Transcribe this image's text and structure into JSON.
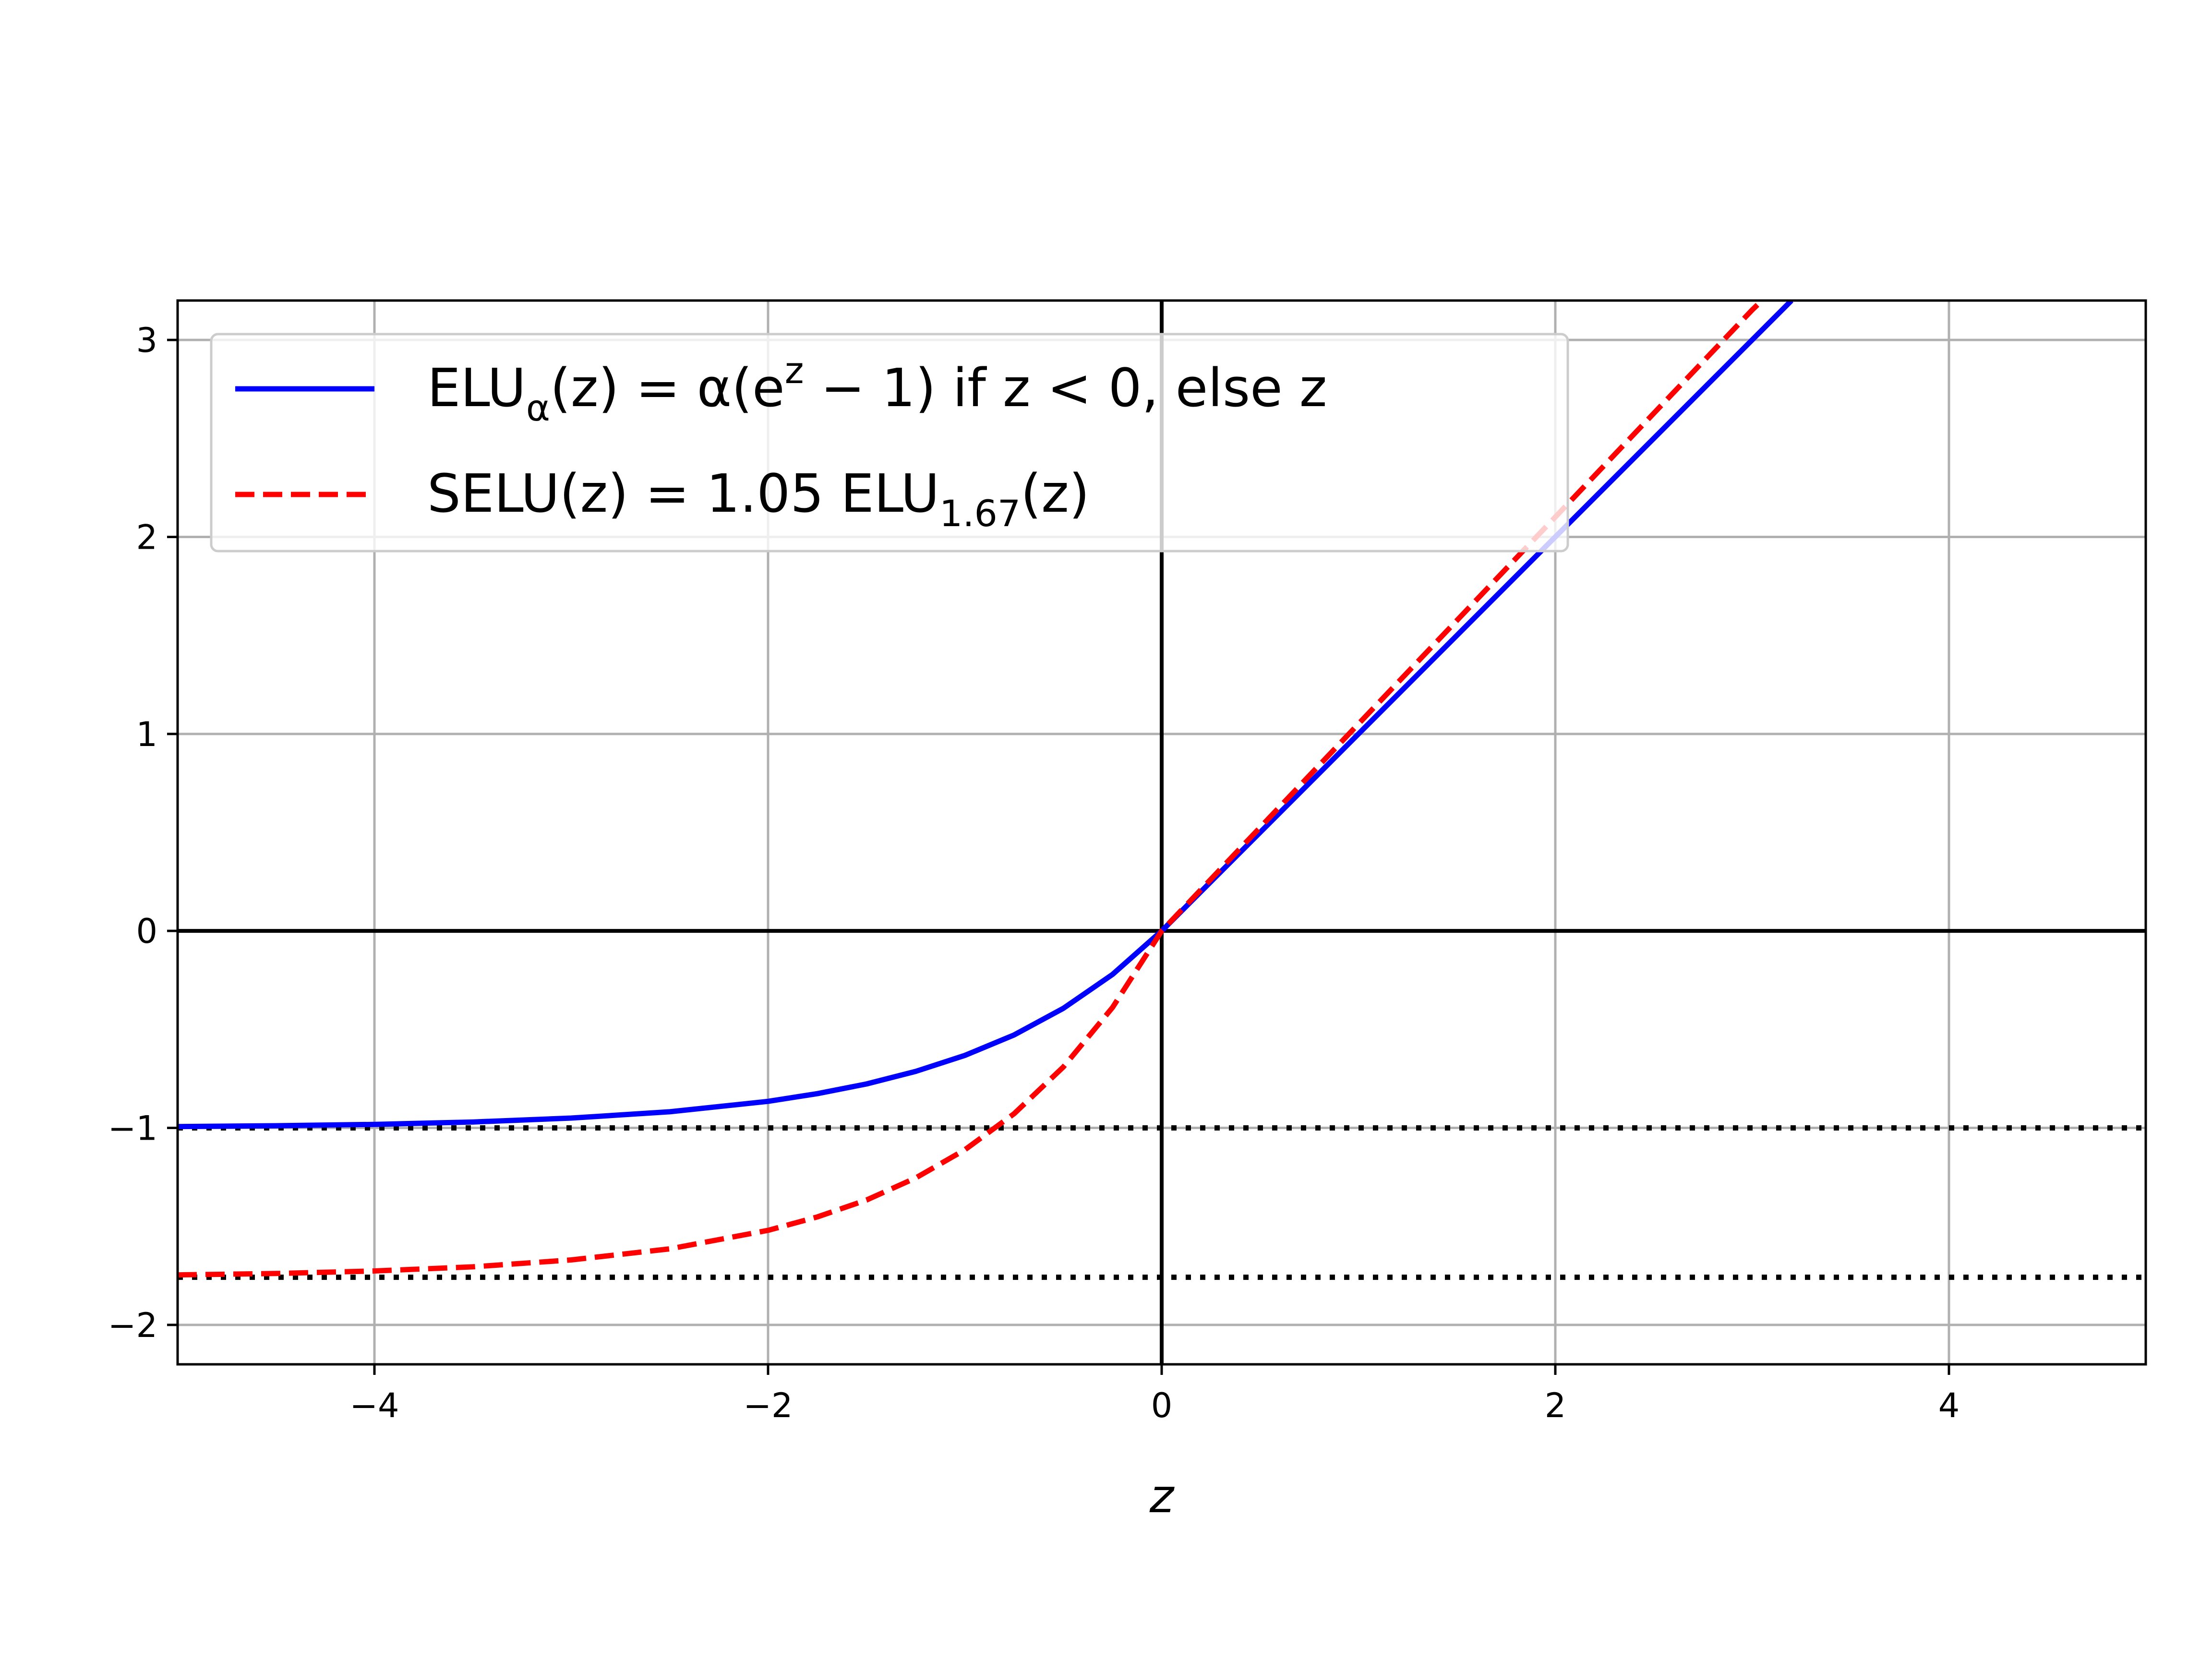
{
  "chart_data": {
    "type": "line",
    "title": "",
    "xlabel": "z",
    "ylabel": "",
    "xlim": [
      -5,
      5
    ],
    "ylim": [
      -2.2,
      3.2
    ],
    "grid": true,
    "legend_position": "upper-left",
    "x_ticks": [
      -4,
      -2,
      0,
      2,
      4
    ],
    "x_tick_labels": [
      "−4",
      "−2",
      "0",
      "2",
      "4"
    ],
    "y_ticks": [
      -2,
      -1,
      0,
      1,
      2,
      3
    ],
    "y_tick_labels": [
      "−2",
      "−1",
      "0",
      "1",
      "2",
      "3"
    ],
    "series": [
      {
        "legend": {
          "base": "ELU",
          "sub": "α",
          "mid": "(z) = α(e",
          "sup": "z",
          "tail": " − 1) if z < 0, else z"
        },
        "color": "#0000ff",
        "style": "solid",
        "x": [
          -5,
          -4.5,
          -4,
          -3.5,
          -3,
          -2.5,
          -2,
          -1.75,
          -1.5,
          -1.25,
          -1,
          -0.75,
          -0.5,
          -0.25,
          0,
          0.5,
          1,
          1.5,
          2,
          2.5,
          3,
          3.2
        ],
        "y": [
          -0.993,
          -0.989,
          -0.982,
          -0.97,
          -0.95,
          -0.918,
          -0.865,
          -0.826,
          -0.777,
          -0.713,
          -0.632,
          -0.528,
          -0.393,
          -0.221,
          0,
          0.5,
          1,
          1.5,
          2,
          2.5,
          3,
          3.2
        ]
      },
      {
        "legend": {
          "base": "SELU(z) = 1.05 ELU",
          "sub": "1.67",
          "tail": "(z)"
        },
        "color": "#ff0000",
        "style": "dashed",
        "x": [
          -5,
          -4.5,
          -4,
          -3.5,
          -3,
          -2.5,
          -2,
          -1.75,
          -1.5,
          -1.25,
          -1,
          -0.75,
          -0.5,
          -0.25,
          0,
          0.5,
          1,
          1.5,
          2,
          2.5,
          3,
          3.05
        ],
        "y": [
          -1.746,
          -1.739,
          -1.726,
          -1.705,
          -1.67,
          -1.614,
          -1.52,
          -1.452,
          -1.366,
          -1.254,
          -1.111,
          -0.928,
          -0.691,
          -0.389,
          0,
          0.525,
          1.051,
          1.576,
          2.101,
          2.627,
          3.152,
          3.2
        ]
      }
    ],
    "reference_lines": [
      {
        "axis": "y",
        "value": 0,
        "style": "solid",
        "color": "#000000"
      },
      {
        "axis": "x",
        "value": 0,
        "style": "solid",
        "color": "#000000"
      },
      {
        "axis": "y",
        "value": -1,
        "style": "dotted",
        "color": "#000000"
      },
      {
        "axis": "y",
        "value": -1.758,
        "style": "dotted",
        "color": "#000000"
      }
    ]
  }
}
